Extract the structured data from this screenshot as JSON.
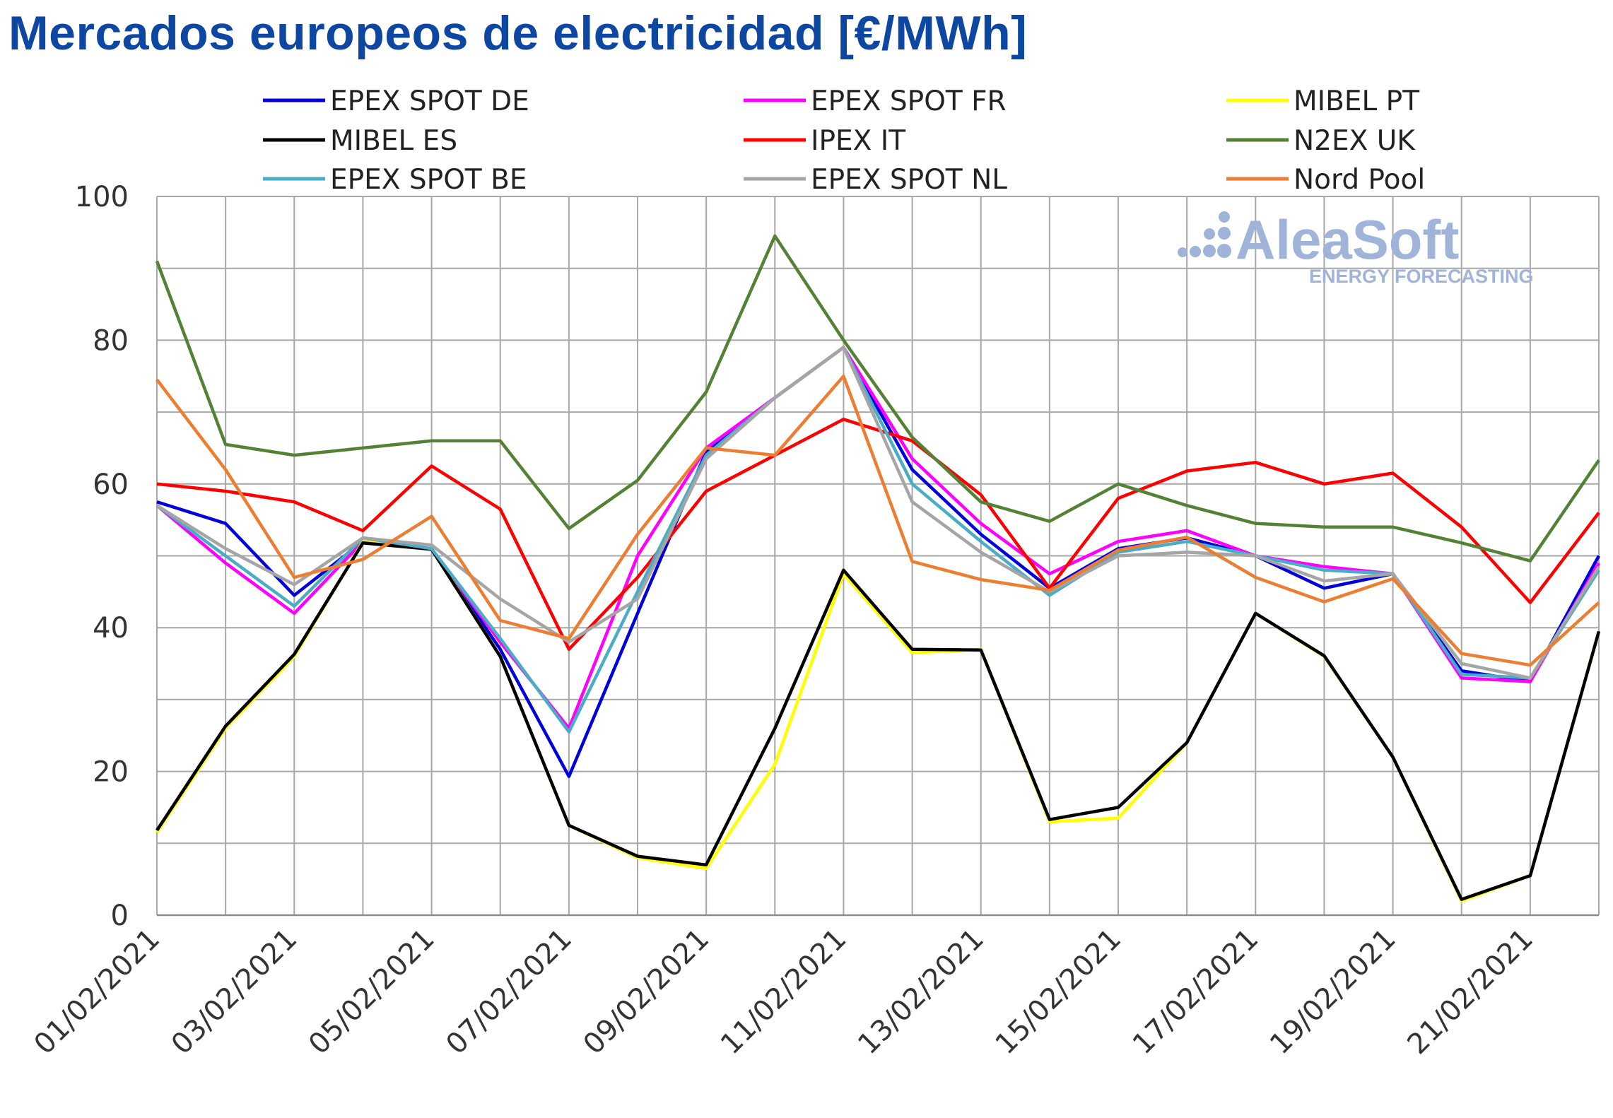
{
  "title": "Mercados europeos de electricidad [€/MWh]",
  "logo": {
    "name": "AleaSoft",
    "tagline": "ENERGY FORECASTING",
    "color": "#9fb4d8"
  },
  "chart_data": {
    "type": "line",
    "title": "Mercados europeos de electricidad [€/MWh]",
    "xlabel": "",
    "ylabel": "",
    "ylim": [
      0,
      100
    ],
    "yticks": [
      0,
      20,
      40,
      60,
      80,
      100
    ],
    "grid": true,
    "legend_position": "top",
    "x": [
      "01/02/2021",
      "02/02/2021",
      "03/02/2021",
      "04/02/2021",
      "05/02/2021",
      "06/02/2021",
      "07/02/2021",
      "08/02/2021",
      "09/02/2021",
      "10/02/2021",
      "11/02/2021",
      "12/02/2021",
      "13/02/2021",
      "14/02/2021",
      "15/02/2021",
      "16/02/2021",
      "17/02/2021",
      "18/02/2021",
      "19/02/2021",
      "20/02/2021",
      "21/02/2021",
      "22/02/2021"
    ],
    "x_tick_labels": [
      "01/02/2021",
      "03/02/2021",
      "05/02/2021",
      "07/02/2021",
      "09/02/2021",
      "11/02/2021",
      "13/02/2021",
      "15/02/2021",
      "17/02/2021",
      "19/02/2021",
      "21/02/2021"
    ],
    "series": [
      {
        "name": "EPEX SPOT DE",
        "color": "#0000dd",
        "values": [
          57.5,
          54.5,
          44.5,
          52,
          51,
          37,
          19.3,
          42,
          64.5,
          72,
          79,
          62,
          53,
          45.5,
          51,
          52.5,
          50,
          45.5,
          47.5,
          34,
          32.5,
          50
        ]
      },
      {
        "name": "EPEX SPOT FR",
        "color": "#ff00ff",
        "values": [
          57,
          49,
          42,
          52,
          51,
          38,
          26,
          50,
          65,
          72,
          79,
          63.5,
          54.5,
          47.5,
          52,
          53.5,
          50,
          48.5,
          47.5,
          33,
          32.5,
          49
        ]
      },
      {
        "name": "MIBEL PT",
        "color": "#ffff00",
        "values": [
          11.5,
          26,
          36,
          52,
          51,
          36,
          12.5,
          8,
          6.5,
          21,
          47.5,
          36.5,
          37,
          13,
          13.5,
          24,
          42,
          36,
          22,
          2,
          5.5,
          39.5
        ]
      },
      {
        "name": "MIBEL ES",
        "color": "#000000",
        "values": [
          11.8,
          26.3,
          36.3,
          51.8,
          50.9,
          36,
          12.5,
          8.2,
          7,
          26,
          48,
          37,
          36.9,
          13.3,
          15,
          24,
          42,
          36.1,
          22,
          2.2,
          5.5,
          39.5
        ]
      },
      {
        "name": "IPEX IT",
        "color": "#ff0000",
        "values": [
          60,
          59,
          57.5,
          53.5,
          62.5,
          56.5,
          37,
          47,
          59,
          64,
          69,
          66,
          58.5,
          45.5,
          58,
          61.8,
          63,
          60,
          61.5,
          54,
          43.5,
          56
        ]
      },
      {
        "name": "N2EX UK",
        "color": "#548235",
        "values": [
          91,
          65.5,
          64,
          65,
          66,
          66,
          53.8,
          60.5,
          72.8,
          94.5,
          80,
          66.5,
          57.5,
          54.8,
          60,
          57,
          54.5,
          54,
          54,
          51.8,
          49.3,
          63.3
        ]
      },
      {
        "name": "EPEX SPOT BE",
        "color": "#4bacc6",
        "values": [
          57,
          50,
          43,
          52.5,
          51,
          38.5,
          25.5,
          45,
          64,
          72,
          79,
          60,
          52,
          44.5,
          50.5,
          52,
          50,
          48,
          47.5,
          33.5,
          33,
          48
        ]
      },
      {
        "name": "EPEX SPOT NL",
        "color": "#a5a5a5",
        "values": [
          57,
          51,
          46,
          52.5,
          51.5,
          44,
          38,
          44,
          63.5,
          72,
          79,
          57.5,
          50.5,
          45,
          50,
          50.5,
          50,
          46.5,
          47.5,
          35,
          33,
          48.5
        ]
      },
      {
        "name": "Nord Pool",
        "color": "#ed7d31",
        "values": [
          74.5,
          62,
          47,
          49.5,
          55.5,
          41,
          38.5,
          53,
          65,
          64,
          75,
          49.2,
          46.7,
          45.2,
          50.8,
          52.6,
          47,
          43.6,
          46.8,
          36.4,
          34.8,
          43.5
        ]
      }
    ]
  }
}
